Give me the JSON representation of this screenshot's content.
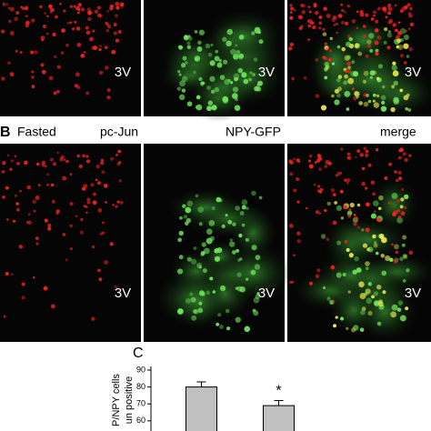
{
  "panel_b_header": {
    "letter": "B",
    "condition": "Fasted",
    "channels": [
      "pc-Jun",
      "NPY-GFP",
      "merge"
    ]
  },
  "image_labels": {
    "row_a": [
      "3V",
      "3V",
      "3V"
    ],
    "row_b": [
      "3V",
      "3V",
      "3V"
    ]
  },
  "chart_data": {
    "type": "bar",
    "panel_letter": "C",
    "y_label_lines": [
      "P/NPY cells",
      "un positive"
    ],
    "categories": [
      null,
      null
    ],
    "series": [
      {
        "color": "#c0c0c0",
        "values": [
          80,
          69
        ],
        "errors": [
          3,
          3
        ]
      }
    ],
    "annotations": [
      {
        "text": "*",
        "category": 1
      }
    ],
    "ylim": [
      54,
      90
    ],
    "yticks": [
      60,
      70,
      80,
      90
    ]
  }
}
